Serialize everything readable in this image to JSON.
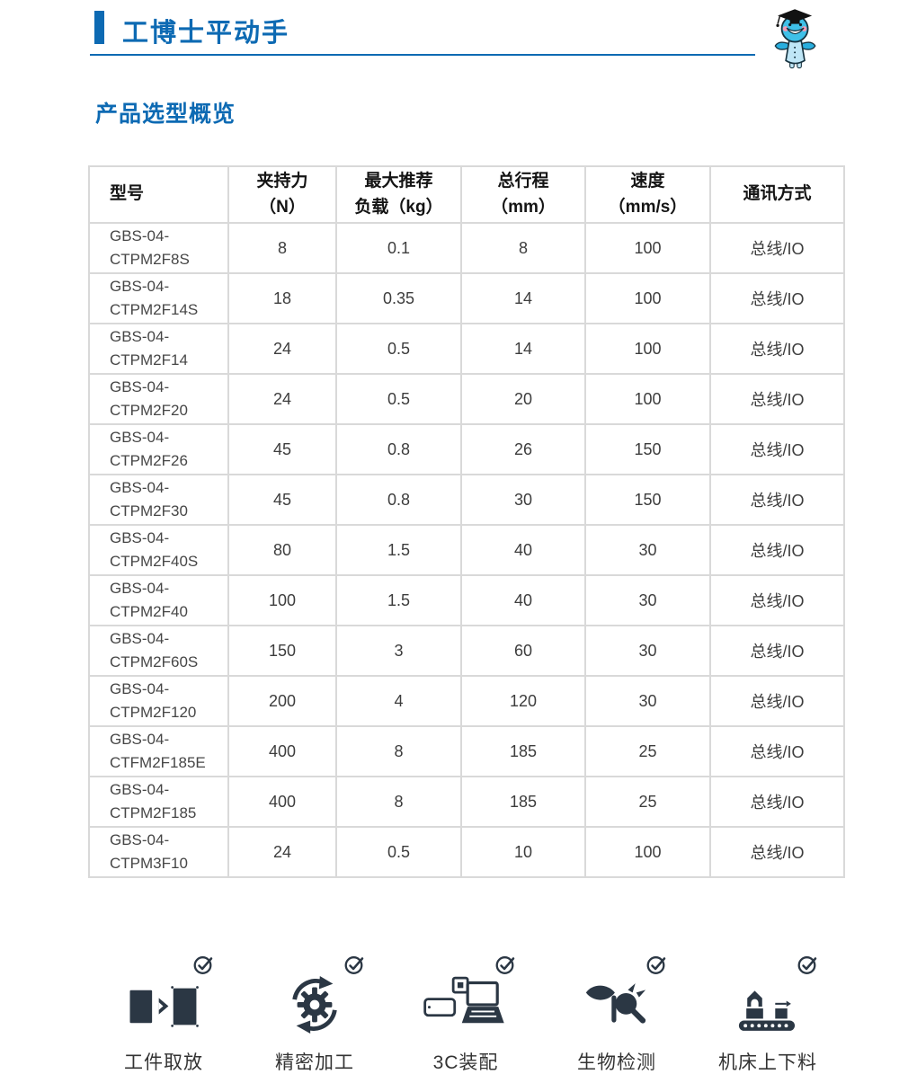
{
  "header": {
    "title": "工博士平动手",
    "mascot": "doctor-robot-mascot"
  },
  "section": {
    "title": "产品选型概览"
  },
  "table": {
    "columns": [
      {
        "id": "model",
        "label_lines": [
          "型号"
        ]
      },
      {
        "id": "clamping_force",
        "label_lines": [
          "夹持力",
          "（N）"
        ]
      },
      {
        "id": "max_load",
        "label_lines": [
          "最大推荐",
          "负载（kg）"
        ]
      },
      {
        "id": "stroke",
        "label_lines": [
          "总行程",
          "（mm）"
        ]
      },
      {
        "id": "speed",
        "label_lines": [
          "速度",
          "（mm/s）"
        ]
      },
      {
        "id": "communication",
        "label_lines": [
          "通讯方式"
        ]
      }
    ],
    "rows": [
      {
        "model_lines": [
          "GBS-04-",
          "CTPM2F8S"
        ],
        "force": "8",
        "load": "0.1",
        "stroke": "8",
        "speed": "100",
        "comm": "总线/IO"
      },
      {
        "model_lines": [
          "GBS-04-",
          "CTPM2F14S"
        ],
        "force": "18",
        "load": "0.35",
        "stroke": "14",
        "speed": "100",
        "comm": "总线/IO"
      },
      {
        "model_lines": [
          "GBS-04-",
          "CTPM2F14"
        ],
        "force": "24",
        "load": "0.5",
        "stroke": "14",
        "speed": "100",
        "comm": "总线/IO"
      },
      {
        "model_lines": [
          "GBS-04-",
          "CTPM2F20"
        ],
        "force": "24",
        "load": "0.5",
        "stroke": "20",
        "speed": "100",
        "comm": "总线/IO"
      },
      {
        "model_lines": [
          "GBS-04-",
          "CTPM2F26"
        ],
        "force": "45",
        "load": "0.8",
        "stroke": "26",
        "speed": "150",
        "comm": "总线/IO"
      },
      {
        "model_lines": [
          "GBS-04-",
          "CTPM2F30"
        ],
        "force": "45",
        "load": "0.8",
        "stroke": "30",
        "speed": "150",
        "comm": "总线/IO"
      },
      {
        "model_lines": [
          "GBS-04-",
          "CTPM2F40S"
        ],
        "force": "80",
        "load": "1.5",
        "stroke": "40",
        "speed": "30",
        "comm": "总线/IO"
      },
      {
        "model_lines": [
          "GBS-04-",
          "CTPM2F40"
        ],
        "force": "100",
        "load": "1.5",
        "stroke": "40",
        "speed": "30",
        "comm": "总线/IO"
      },
      {
        "model_lines": [
          "GBS-04-",
          "CTPM2F60S"
        ],
        "force": "150",
        "load": "3",
        "stroke": "60",
        "speed": "30",
        "comm": "总线/IO"
      },
      {
        "model_lines": [
          "GBS-04-",
          "CTPM2F120"
        ],
        "force": "200",
        "load": "4",
        "stroke": "120",
        "speed": "30",
        "comm": "总线/IO"
      },
      {
        "model_lines": [
          "GBS-04-",
          "CTFM2F185E"
        ],
        "force": "400",
        "load": "8",
        "stroke": "185",
        "speed": "25",
        "comm": "总线/IO"
      },
      {
        "model_lines": [
          "GBS-04-",
          "CTPM2F185"
        ],
        "force": "400",
        "load": "8",
        "stroke": "185",
        "speed": "25",
        "comm": "总线/IO"
      },
      {
        "model_lines": [
          "GBS-04-",
          "CTPM3F10"
        ],
        "force": "24",
        "load": "0.5",
        "stroke": "10",
        "speed": "100",
        "comm": "总线/IO"
      }
    ]
  },
  "applications": [
    {
      "icon": "pick-place-icon",
      "label": "工件取放"
    },
    {
      "icon": "precision-machining-icon",
      "label": "精密加工"
    },
    {
      "icon": "assembly-3c-icon",
      "label": "3C装配"
    },
    {
      "icon": "bio-detection-icon",
      "label": "生物检测"
    },
    {
      "icon": "machine-tool-loading-icon",
      "label": "机床上下料"
    }
  ],
  "colors": {
    "accent_blue": "#0d6ab3",
    "table_border": "#d9d9d9",
    "icon_dark": "#2b3744",
    "cell_text": "#3d3d3d"
  }
}
